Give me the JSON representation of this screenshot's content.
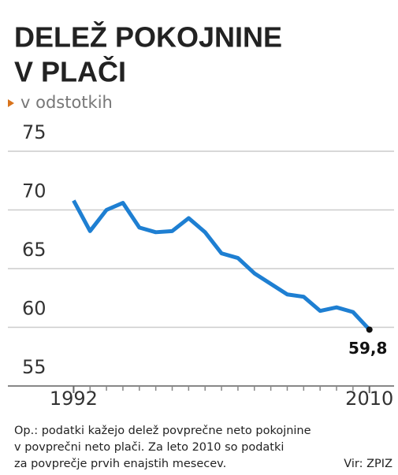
{
  "chart_data": {
    "type": "line",
    "title": [
      "DELEŽ POKOJNINE",
      "V PLAČI"
    ],
    "subtitle": "v odstotkih",
    "x": [
      1992,
      1993,
      1994,
      1995,
      1996,
      1997,
      1998,
      1999,
      2000,
      2001,
      2002,
      2003,
      2004,
      2005,
      2006,
      2007,
      2008,
      2009,
      2010
    ],
    "series": [
      {
        "color": "#1e7fd2",
        "values": [
          70.8,
          68.2,
          70.0,
          70.6,
          68.5,
          68.1,
          68.2,
          69.3,
          68.1,
          66.3,
          65.9,
          64.6,
          63.7,
          62.8,
          62.6,
          61.4,
          61.7,
          61.3,
          59.8
        ],
        "value_labels": [
          null,
          null,
          null,
          null,
          null,
          null,
          null,
          null,
          null,
          null,
          null,
          null,
          null,
          null,
          null,
          null,
          null,
          null,
          "59,8"
        ]
      }
    ],
    "xlim": [
      1988,
      2011.5
    ],
    "xticks": [
      1992,
      2010
    ],
    "ylim": [
      55,
      75
    ],
    "yticks": [
      55,
      60,
      65,
      70,
      75
    ],
    "grid": true,
    "note": [
      "Op.: podatki kažejo delež povprečne neto pokojnine",
      "v povprečni neto plači. Za leto 2010 so podatki",
      "za povprečje prvih enajstih mesecev."
    ],
    "source": "Vir: ZPIZ"
  }
}
